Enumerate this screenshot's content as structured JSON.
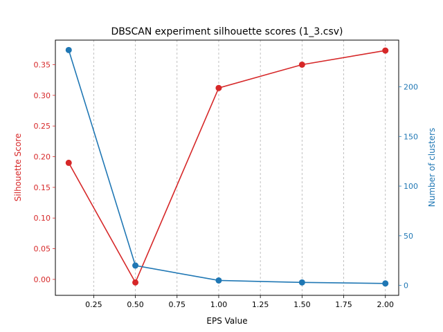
{
  "chart_data": {
    "type": "line",
    "title": "DBSCAN experiment silhouette scores (1_3.csv)",
    "xlabel": "EPS Value",
    "ylabel_left": "Silhouette Score",
    "ylabel_right": "Number of clusters",
    "x": [
      0.1,
      0.5,
      1.0,
      1.5,
      2.0
    ],
    "xlim": [
      0.02,
      2.08
    ],
    "xticks": [
      "0.25",
      "0.50",
      "0.75",
      "1.00",
      "1.25",
      "1.50",
      "1.75",
      "2.00"
    ],
    "ylim_left": [
      -0.026,
      0.39
    ],
    "yticks_left": [
      "0.00",
      "0.05",
      "0.10",
      "0.15",
      "0.20",
      "0.25",
      "0.30",
      "0.35"
    ],
    "ylim_right": [
      -10,
      247
    ],
    "yticks_right": [
      "0",
      "50",
      "100",
      "150",
      "200"
    ],
    "vertical_grid": true,
    "series": [
      {
        "axis": "left",
        "color": "#d62728",
        "values": [
          0.19,
          -0.005,
          0.312,
          0.35,
          0.373
        ]
      },
      {
        "axis": "right",
        "color": "#1f77b4",
        "values": [
          237,
          20,
          5,
          3,
          2
        ]
      }
    ]
  }
}
